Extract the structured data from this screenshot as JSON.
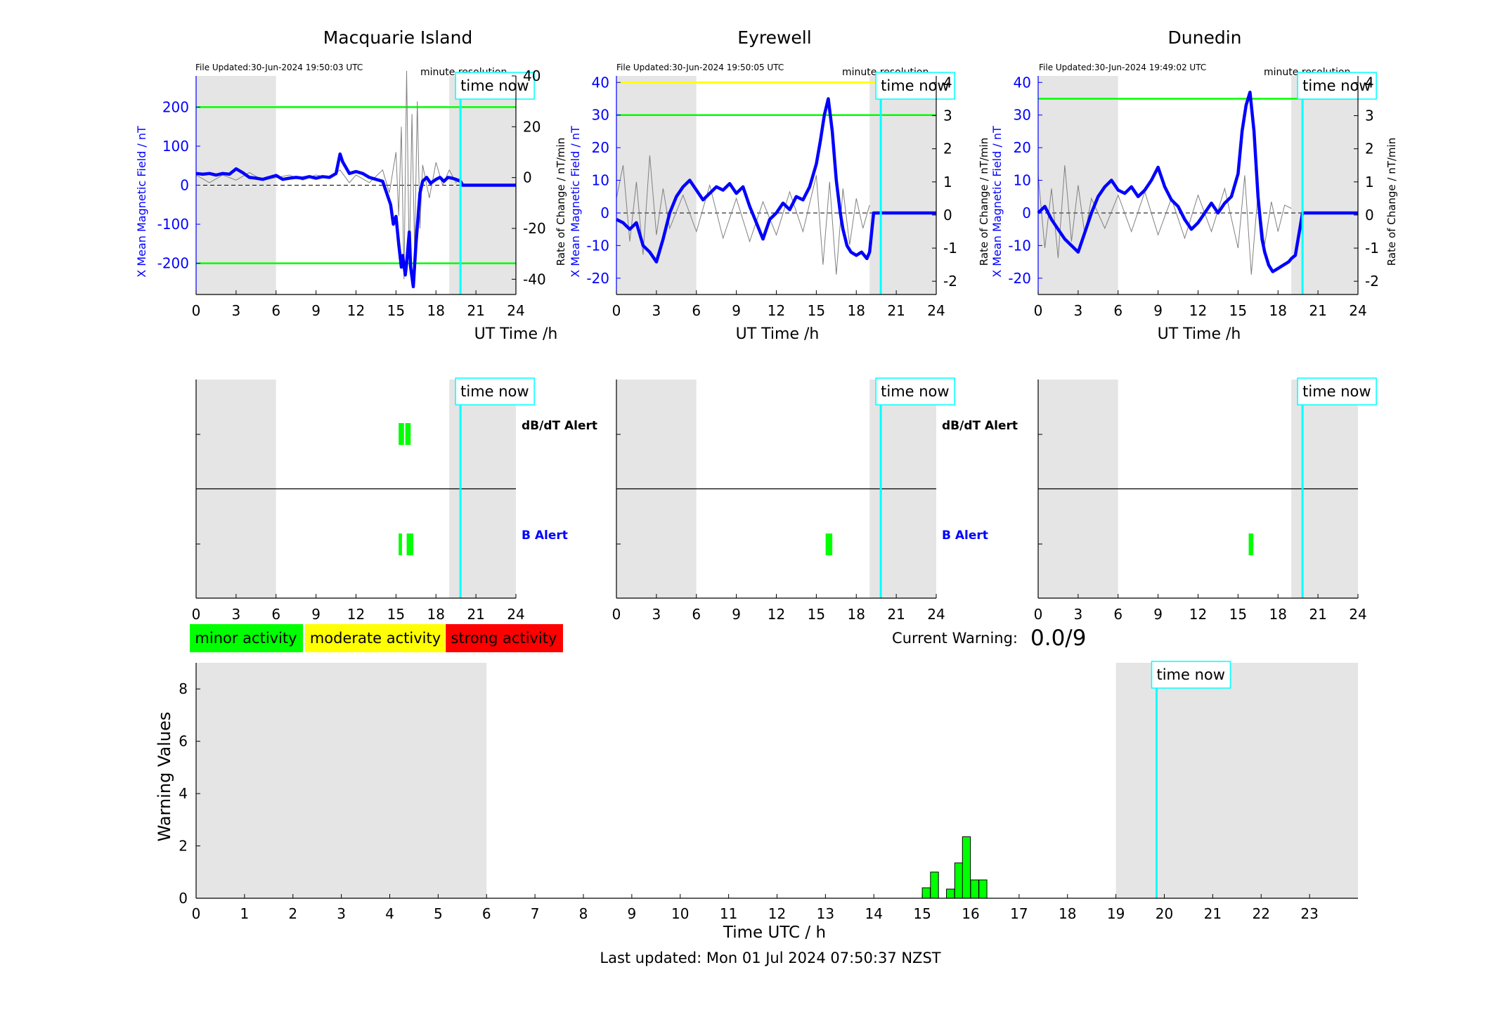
{
  "colors": {
    "shade": "#e5e5e5",
    "field_line": "#0000ff",
    "rate_line": "#808080",
    "threshold_green": "#00ff00",
    "threshold_yellow": "#ffff00",
    "time_now": "#00ffff",
    "minor": "#00ff00",
    "moderate": "#ffff00",
    "strong": "#ff0000",
    "b_alert_label": "#0000ff",
    "dbdt_alert_label": "#000000"
  },
  "common": {
    "x_axis_label": "UT Time /h",
    "time_now_label": "time now",
    "resolution_label": "minute resolution",
    "left_axis_label": "X Mean Magnetic Field / nT",
    "right_axis_label": "Rate of Change / nT/min",
    "x_ticks": [
      "0",
      "3",
      "6",
      "9",
      "12",
      "15",
      "18",
      "21",
      "24"
    ],
    "dbdt_alert_label": "dB/dT Alert",
    "b_alert_label": "B Alert"
  },
  "legend": {
    "minor": "minor activity",
    "moderate": "moderate activity",
    "strong": "strong activity"
  },
  "current_warning": {
    "label": "Current Warning:",
    "value": "0.0/9"
  },
  "footer": {
    "last_updated": "Last updated: Mon 01 Jul 2024 07:50:37 NZST"
  },
  "chart_data": [
    {
      "type": "line",
      "station": "Macquarie Island",
      "file_updated": "File Updated:30-Jun-2024 19:50:03 UTC",
      "xlim": [
        0,
        24
      ],
      "ylim_left": [
        -280,
        280
      ],
      "ylim_right": [
        -46,
        40
      ],
      "left_ticks": [
        "200",
        "100",
        "0",
        "-100",
        "-200"
      ],
      "right_ticks": [
        "40",
        "20",
        "0",
        "-20",
        "-40"
      ],
      "shade_ranges_h": [
        [
          0,
          6
        ],
        [
          19,
          24
        ]
      ],
      "time_now_h": 19.84,
      "thresholds": [
        {
          "value": 200,
          "color": "green"
        },
        {
          "value": -200,
          "color": "green"
        }
      ],
      "field_series": {
        "x": [
          0,
          0.5,
          1,
          1.5,
          2,
          2.5,
          3,
          3.5,
          4,
          4.5,
          5,
          5.5,
          6,
          6.5,
          7,
          7.5,
          8,
          8.5,
          9,
          9.5,
          10,
          10.5,
          10.8,
          11,
          11.5,
          12,
          12.5,
          13,
          13.5,
          14,
          14.3,
          14.6,
          14.8,
          15,
          15.2,
          15.4,
          15.5,
          15.7,
          15.8,
          16,
          16.1,
          16.3,
          16.5,
          16.8,
          17,
          17.3,
          17.6,
          18,
          18.3,
          18.6,
          18.9,
          19.2,
          19.5,
          19.84,
          20,
          22,
          24
        ],
        "y": [
          30,
          28,
          30,
          26,
          30,
          28,
          42,
          32,
          20,
          18,
          15,
          20,
          25,
          15,
          18,
          20,
          18,
          22,
          18,
          22,
          20,
          30,
          80,
          60,
          30,
          35,
          30,
          20,
          15,
          10,
          -20,
          -50,
          -100,
          -80,
          -150,
          -210,
          -180,
          -230,
          -200,
          -120,
          -210,
          -260,
          -150,
          -20,
          10,
          20,
          5,
          15,
          20,
          10,
          20,
          18,
          15,
          10,
          0,
          0,
          0
        ]
      },
      "rate_series": {
        "x": [
          0,
          1,
          2,
          3,
          4,
          5,
          6,
          7,
          8,
          9,
          10,
          10.8,
          11.5,
          12,
          13,
          14,
          14.5,
          15,
          15.2,
          15.4,
          15.6,
          15.8,
          16,
          16.2,
          16.4,
          16.6,
          16.8,
          17,
          17.5,
          18,
          18.5,
          19,
          19.5,
          19.84
        ],
        "y": [
          1,
          -2,
          1,
          -1,
          2,
          -1,
          0,
          1,
          -1,
          1,
          0,
          3,
          -2,
          1,
          -2,
          3,
          -6,
          10,
          -15,
          20,
          -40,
          42,
          -35,
          25,
          -30,
          30,
          -20,
          5,
          -8,
          6,
          -3,
          3,
          -2,
          0
        ]
      }
    },
    {
      "type": "line",
      "station": "Eyrewell",
      "file_updated": "File Updated:30-Jun-2024 19:50:05 UTC",
      "xlim": [
        0,
        24
      ],
      "ylim_left": [
        -25,
        42
      ],
      "ylim_right": [
        -2.4,
        4.2
      ],
      "left_ticks": [
        "40",
        "30",
        "20",
        "10",
        "0",
        "-10",
        "-20"
      ],
      "right_ticks": [
        "4",
        "3",
        "2",
        "1",
        "0",
        "-1",
        "-2"
      ],
      "shade_ranges_h": [
        [
          0,
          6
        ],
        [
          19,
          24
        ]
      ],
      "time_now_h": 19.84,
      "thresholds": [
        {
          "value": 40,
          "color": "yellow"
        },
        {
          "value": 30,
          "color": "green"
        }
      ],
      "field_series": {
        "x": [
          0,
          0.5,
          1,
          1.5,
          2,
          2.5,
          3,
          3.5,
          4,
          4.5,
          5,
          5.5,
          6,
          6.5,
          7,
          7.5,
          8,
          8.5,
          9,
          9.5,
          10,
          10.5,
          11,
          11.5,
          12,
          12.5,
          13,
          13.5,
          14,
          14.5,
          15,
          15.3,
          15.6,
          15.9,
          16.2,
          16.5,
          16.8,
          17,
          17.3,
          17.6,
          18,
          18.4,
          18.8,
          19,
          19.3,
          19.84,
          20,
          22,
          24
        ],
        "y": [
          -2,
          -3,
          -5,
          -3,
          -10,
          -12,
          -15,
          -8,
          0,
          5,
          8,
          10,
          7,
          4,
          6,
          8,
          7,
          9,
          6,
          8,
          2,
          -3,
          -8,
          -2,
          0,
          3,
          1,
          5,
          4,
          8,
          15,
          22,
          30,
          35,
          25,
          10,
          0,
          -5,
          -10,
          -12,
          -13,
          -12,
          -14,
          -12,
          0,
          0,
          0,
          0,
          0
        ]
      },
      "rate_series": {
        "x": [
          0,
          0.5,
          1,
          1.5,
          2,
          2.5,
          3,
          3.5,
          4,
          5,
          6,
          7,
          8,
          9,
          10,
          11,
          12,
          13,
          14,
          15,
          15.5,
          16,
          16.5,
          17,
          17.5,
          18,
          18.5,
          19
        ],
        "y": [
          0.5,
          1.5,
          -0.8,
          1.0,
          -1.2,
          1.8,
          -0.6,
          0.8,
          -0.4,
          0.6,
          -0.5,
          0.9,
          -0.7,
          0.5,
          -0.8,
          0.4,
          -0.6,
          0.7,
          -0.5,
          1.2,
          -1.5,
          1.0,
          -1.8,
          0.8,
          -0.9,
          0.5,
          -0.4,
          0.3
        ]
      }
    },
    {
      "type": "line",
      "station": "Dunedin",
      "file_updated": "File Updated:30-Jun-2024 19:49:02 UTC",
      "xlim": [
        0,
        24
      ],
      "ylim_left": [
        -25,
        42
      ],
      "ylim_right": [
        -2.4,
        4.2
      ],
      "left_ticks": [
        "40",
        "30",
        "20",
        "10",
        "0",
        "-10",
        "-20"
      ],
      "right_ticks": [
        "4",
        "3",
        "2",
        "1",
        "0",
        "-1",
        "-2"
      ],
      "shade_ranges_h": [
        [
          0,
          6
        ],
        [
          19,
          24
        ]
      ],
      "time_now_h": 19.84,
      "thresholds": [
        {
          "value": 35,
          "color": "green"
        }
      ],
      "field_series": {
        "x": [
          0,
          0.5,
          1,
          1.5,
          2,
          2.5,
          3,
          3.5,
          4,
          4.5,
          5,
          5.5,
          6,
          6.5,
          7,
          7.5,
          8,
          8.5,
          9,
          9.5,
          10,
          10.5,
          11,
          11.5,
          12,
          12.5,
          13,
          13.5,
          14,
          14.5,
          15,
          15.3,
          15.6,
          15.9,
          16.2,
          16.5,
          16.8,
          17,
          17.3,
          17.6,
          18,
          18.4,
          18.8,
          19,
          19.3,
          19.84,
          20,
          22,
          24
        ],
        "y": [
          0,
          2,
          -2,
          -5,
          -8,
          -10,
          -12,
          -6,
          0,
          5,
          8,
          10,
          7,
          6,
          8,
          5,
          7,
          10,
          14,
          8,
          4,
          2,
          -2,
          -5,
          -3,
          0,
          3,
          0,
          3,
          5,
          12,
          25,
          33,
          37,
          25,
          5,
          -8,
          -12,
          -16,
          -18,
          -17,
          -16,
          -15,
          -14,
          -13,
          0,
          0,
          0,
          0
        ]
      },
      "rate_series": {
        "x": [
          0,
          0.5,
          1,
          1.5,
          2,
          2.5,
          3,
          3.5,
          4,
          5,
          6,
          7,
          8,
          9,
          10,
          11,
          12,
          13,
          14,
          15,
          15.5,
          16,
          16.5,
          17,
          17.5,
          18,
          18.5,
          19
        ],
        "y": [
          1.2,
          -1.0,
          0.8,
          -1.3,
          1.5,
          -0.8,
          0.9,
          -0.6,
          0.5,
          -0.4,
          0.6,
          -0.5,
          0.7,
          -0.6,
          0.5,
          -0.7,
          0.6,
          -0.5,
          0.8,
          -1.0,
          1.2,
          -1.8,
          0.7,
          -0.9,
          0.4,
          -0.5,
          0.3,
          0.2
        ]
      }
    },
    {
      "type": "bar",
      "panel": "alerts-macquarie",
      "xlim": [
        0,
        24
      ],
      "time_now_h": 19.84,
      "shade_ranges_h": [
        [
          0,
          6
        ],
        [
          19,
          24
        ]
      ],
      "dbdt_alert_blocks_h": [
        [
          15.2,
          15.6
        ],
        [
          15.7,
          16.1
        ]
      ],
      "b_alert_blocks_h": [
        [
          15.2,
          15.45
        ],
        [
          15.8,
          16.3
        ]
      ]
    },
    {
      "type": "bar",
      "panel": "alerts-eyrewell",
      "xlim": [
        0,
        24
      ],
      "time_now_h": 19.84,
      "shade_ranges_h": [
        [
          0,
          6
        ],
        [
          19,
          24
        ]
      ],
      "dbdt_alert_blocks_h": [],
      "b_alert_blocks_h": [
        [
          15.7,
          16.2
        ]
      ]
    },
    {
      "type": "bar",
      "panel": "alerts-dunedin",
      "xlim": [
        0,
        24
      ],
      "time_now_h": 19.84,
      "shade_ranges_h": [
        [
          0,
          6
        ],
        [
          19,
          24
        ]
      ],
      "dbdt_alert_blocks_h": [],
      "b_alert_blocks_h": [
        [
          15.8,
          16.15
        ]
      ]
    },
    {
      "type": "bar",
      "panel": "warning-values",
      "xlabel": "Time UTC / h",
      "ylabel": "Warning Values",
      "xlim": [
        0,
        24
      ],
      "ylim": [
        0,
        9
      ],
      "y_ticks": [
        "0",
        "2",
        "4",
        "6",
        "8"
      ],
      "x_ticks": [
        "0",
        "1",
        "2",
        "3",
        "4",
        "5",
        "6",
        "7",
        "8",
        "9",
        "10",
        "11",
        "12",
        "13",
        "14",
        "15",
        "16",
        "17",
        "18",
        "19",
        "20",
        "21",
        "22",
        "23"
      ],
      "shade_ranges_h": [
        [
          0,
          6
        ],
        [
          19,
          24
        ]
      ],
      "time_now_h": 19.84,
      "bars": {
        "x": [
          15.0,
          15.17,
          15.5,
          15.67,
          15.83,
          16.0,
          16.17
        ],
        "values": [
          0.4,
          1.0,
          0.35,
          1.35,
          2.35,
          0.7,
          0.7
        ],
        "width": 0.165
      }
    }
  ]
}
